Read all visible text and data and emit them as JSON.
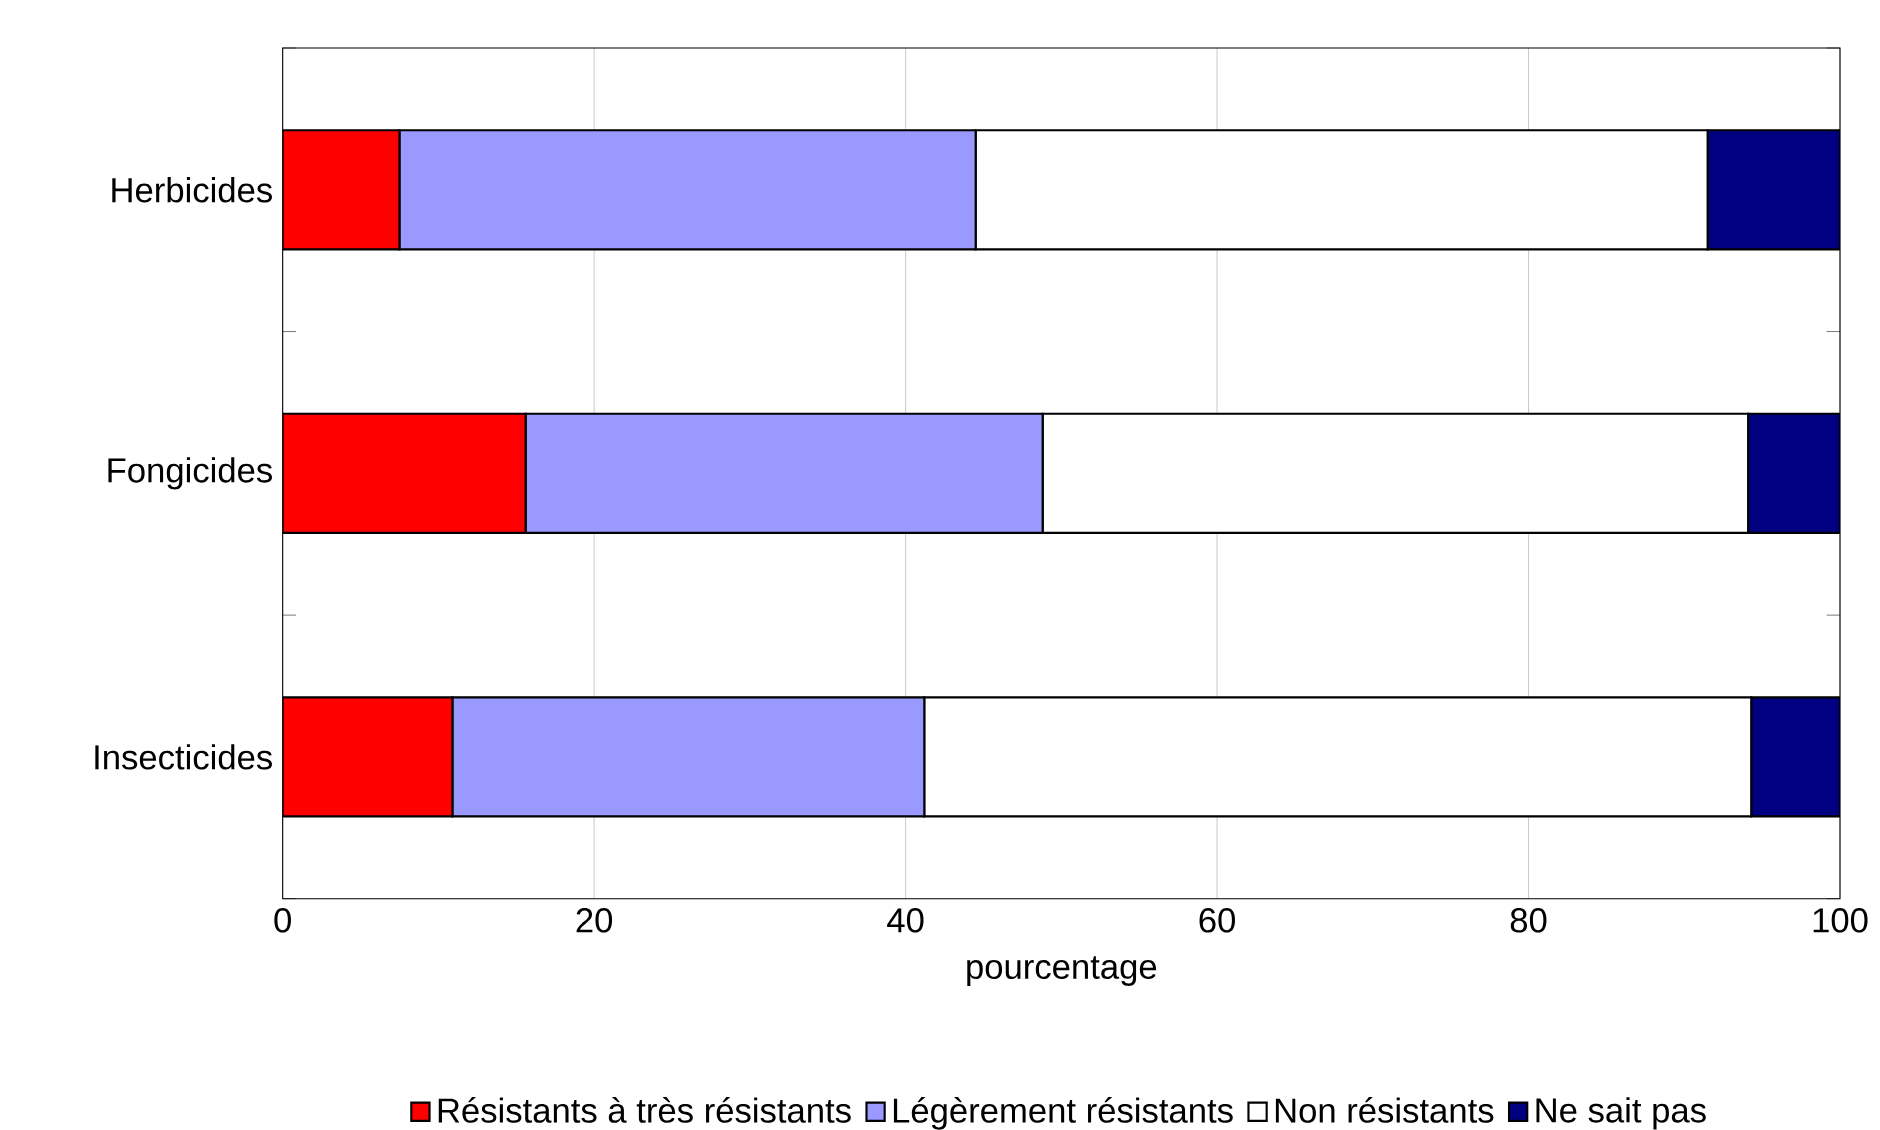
{
  "chart_data": {
    "type": "bar",
    "orientation": "horizontal",
    "stacked": true,
    "categories": [
      "Herbicides",
      "Fongicides",
      "Insecticides"
    ],
    "series": [
      {
        "name": "Résistants à très résistants",
        "color": "#ff0000",
        "values": [
          7.5,
          15.6,
          10.9
        ]
      },
      {
        "name": "Légèrement résistants",
        "color": "#9999ff",
        "values": [
          37,
          33.2,
          30.3
        ]
      },
      {
        "name": "Non résistants",
        "color": "#ffffff",
        "values": [
          47,
          45.3,
          53.1
        ]
      },
      {
        "name": "Ne sait pas",
        "color": "#000080",
        "values": [
          8.5,
          5.9,
          5.7
        ]
      }
    ],
    "xlabel": "pourcentage",
    "xlim": [
      0,
      100
    ],
    "xticks": [
      0,
      20,
      40,
      60,
      80,
      100
    ],
    "grid": "x",
    "legend": "bottom"
  }
}
